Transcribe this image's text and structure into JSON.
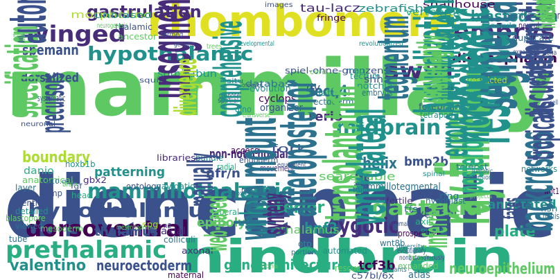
{
  "palette": {
    "purple": "#440154",
    "indigo": "#472c7a",
    "navy": "#3b518b",
    "steel": "#2c718e",
    "teal": "#21918c",
    "sea": "#28ae80",
    "green": "#5ec962",
    "lime": "#addc30",
    "yellow": "#e0e022",
    "gold": "#fde725",
    "slate": "#414487"
  },
  "words": [
    {
      "text": "mammillary",
      "color": "#5ec962"
    },
    {
      "text": "diencephalic",
      "color": "#3b518b"
    },
    {
      "text": "rhombomere",
      "color": "#e0e022"
    },
    {
      "text": "hindbrain",
      "color": "#28ae80"
    },
    {
      "text": "hypothalamus",
      "color": "#3b518b"
    },
    {
      "text": "mammillothalamic",
      "color": "#21918c"
    },
    {
      "text": "dorsoventral",
      "color": "#440154"
    },
    {
      "text": "prethalamic",
      "color": "#28ae80"
    },
    {
      "text": "hypothalamic",
      "color": "#21918c"
    },
    {
      "text": "winged",
      "color": "#472c7a"
    },
    {
      "text": "swirl",
      "color": "#472c7a"
    },
    {
      "text": "embrys",
      "color": "#472c7a"
    },
    {
      "text": "midbrain",
      "color": "#21918c"
    },
    {
      "text": "gastrula",
      "color": "#5ec962"
    },
    {
      "text": "gastrulation",
      "color": "#472c7a"
    },
    {
      "text": "blastoderm",
      "color": "#21918c"
    },
    {
      "text": "diencephalon",
      "color": "#440154"
    },
    {
      "text": "spemann",
      "color": "#3b518b"
    },
    {
      "text": "dorsalized",
      "color": "#3b518b"
    },
    {
      "text": "boundary",
      "color": "#addc30"
    },
    {
      "text": "resource",
      "color": "#21918c"
    },
    {
      "text": "helix",
      "color": "#2c718e"
    },
    {
      "text": "fecq4",
      "color": "#2c718e"
    },
    {
      "text": "anterior",
      "color": "#28ae80"
    },
    {
      "text": "zygotic",
      "color": "#472c7a"
    },
    {
      "text": "hnf3",
      "color": "#21918c"
    },
    {
      "text": "searchable",
      "color": "#5ec962"
    },
    {
      "text": "bmp2b",
      "color": "#3b518b"
    },
    {
      "text": "patterning",
      "color": "#21918c"
    },
    {
      "text": "thalamus",
      "color": "#3b518b"
    },
    {
      "text": "valentino",
      "color": "#21918c"
    },
    {
      "text": "neuroectoderm",
      "color": "#3b518b"
    },
    {
      "text": "tcf3b",
      "color": "#440154"
    },
    {
      "text": "genoarchitecture",
      "color": "#28ae80"
    },
    {
      "text": "neuroepithelium",
      "color": "#5ec962"
    },
    {
      "text": "prethalamus",
      "color": "#5ec962"
    },
    {
      "text": "ventral",
      "color": "#3b518b"
    },
    {
      "text": "annotated",
      "color": "#21918c"
    },
    {
      "text": "plate",
      "color": "#28ae80"
    },
    {
      "text": "ray-finned",
      "color": "#5ec962"
    },
    {
      "text": "epiboly",
      "color": "#5ec962"
    },
    {
      "text": "non-notochordal",
      "color": "#472c7a"
    },
    {
      "text": "mammillotegmental",
      "color": "#2c718e"
    },
    {
      "text": "segmentation",
      "color": "#2c718e"
    },
    {
      "text": "vertebrate",
      "color": "#28ae80"
    },
    {
      "text": "snailhouse",
      "color": "#440154"
    },
    {
      "text": "somites",
      "color": "#2c718e"
    },
    {
      "text": "floor",
      "color": "#3b518b"
    },
    {
      "text": "tau-lacz",
      "color": "#472c7a"
    },
    {
      "text": "zebrafish",
      "color": "#21918c"
    },
    {
      "text": "morpholino",
      "color": "#addc30"
    },
    {
      "text": "unbiased",
      "color": "#21918c"
    },
    {
      "text": "images",
      "color": "#3b518b"
    },
    {
      "text": "fringe",
      "color": "#440154"
    },
    {
      "text": "thalamic",
      "color": "#3b518b"
    },
    {
      "text": "ancestor",
      "color": "#5ec962"
    },
    {
      "text": "blastula",
      "color": "#21918c"
    },
    {
      "text": "neural",
      "color": "#472c7a"
    },
    {
      "text": "spiel-ohne-grenzen",
      "color": "#3b518b"
    },
    {
      "text": "fork",
      "color": "#3b518b"
    },
    {
      "text": "somitabun",
      "color": "#21918c"
    },
    {
      "text": "squint",
      "color": "#3b518b"
    },
    {
      "text": "situ",
      "color": "#2c718e"
    },
    {
      "text": "database",
      "color": "#2c718e"
    },
    {
      "text": "evolution",
      "color": "#21918c"
    },
    {
      "text": "cyclops",
      "color": "#440154"
    },
    {
      "text": "organizer",
      "color": "#3b518b"
    },
    {
      "text": "ectoderm",
      "color": "#2c718e"
    },
    {
      "text": "tectum",
      "color": "#21918c"
    },
    {
      "text": "notchla",
      "color": "#21918c"
    },
    {
      "text": "lateral",
      "color": "#21918c"
    },
    {
      "text": "embryos",
      "color": "#2c718e"
    },
    {
      "text": "tegmentum",
      "color": "#2c718e"
    },
    {
      "text": "forebrain",
      "color": "#3b518b"
    },
    {
      "text": "tetrapod",
      "color": "#21918c"
    },
    {
      "text": "rerio",
      "color": "#472c7a"
    },
    {
      "text": "dv",
      "color": "#3b518b"
    },
    {
      "text": "dino",
      "color": "#21918c"
    },
    {
      "text": "map",
      "color": "#21918c"
    },
    {
      "text": "shh",
      "color": "#3b518b"
    },
    {
      "text": "cord",
      "color": "#5ec962"
    },
    {
      "text": "restricted",
      "color": "#addc30"
    },
    {
      "text": "expense",
      "color": "#3b518b"
    },
    {
      "text": "informatics",
      "color": "#3b518b"
    },
    {
      "text": "accurately",
      "color": "#3b518b"
    },
    {
      "text": "systematic",
      "color": "#3b518b"
    },
    {
      "text": "unsegmented",
      "color": "#472c7a"
    },
    {
      "text": "libraries",
      "color": "#472c7a"
    },
    {
      "text": "bundle",
      "color": "#21918c"
    },
    {
      "text": "access",
      "color": "#440154"
    },
    {
      "text": "endoderm",
      "color": "#3b518b"
    },
    {
      "text": "movement",
      "color": "#472c7a"
    },
    {
      "text": "danio",
      "color": "#28ae80"
    },
    {
      "text": "anatomical",
      "color": "#5ec962"
    },
    {
      "text": "navigation",
      "color": "#21918c"
    },
    {
      "text": "radial",
      "color": "#28ae80"
    },
    {
      "text": "rostral",
      "color": "#3b518b"
    },
    {
      "text": "fertile",
      "color": "#472c7a"
    },
    {
      "text": "spinal",
      "color": "#21918c"
    },
    {
      "text": "teleost",
      "color": "#2c718e"
    },
    {
      "text": "networks",
      "color": "#21918c"
    },
    {
      "text": "rfng",
      "color": "#2c718e"
    },
    {
      "text": "tfs",
      "color": "#2c718e"
    },
    {
      "text": "hypoblast",
      "color": "#2c718e"
    },
    {
      "text": "posterior",
      "color": "#28ae80"
    },
    {
      "text": "axis",
      "color": "#28ae80"
    },
    {
      "text": "medial",
      "color": "#21918c"
    },
    {
      "text": "fates",
      "color": "#3b518b"
    },
    {
      "text": "minis",
      "color": "#2c718e"
    },
    {
      "text": "wnt1",
      "color": "#440154"
    },
    {
      "text": "fish",
      "color": "#2c718e"
    },
    {
      "text": "nfr/n",
      "color": "#3b518b"
    },
    {
      "text": "tuberal",
      "color": "#28ae80"
    },
    {
      "text": "transplantation",
      "color": "#5ec962"
    },
    {
      "text": "yolk",
      "color": "#21918c"
    },
    {
      "text": "anteroposterior",
      "color": "#2c718e"
    },
    {
      "text": "ontology",
      "color": "#3b518b"
    },
    {
      "text": "manually",
      "color": "#3b518b"
    },
    {
      "text": "hoxb1b",
      "color": "#21918c"
    },
    {
      "text": "gbx2",
      "color": "#472c7a"
    },
    {
      "text": "bmp",
      "color": "#3b518b"
    },
    {
      "text": "layer",
      "color": "#2c718e"
    },
    {
      "text": "b10.q",
      "color": "#2c718e"
    },
    {
      "text": "head",
      "color": "#28ae80"
    },
    {
      "text": "identity",
      "color": "#3b518b"
    },
    {
      "text": "detailed",
      "color": "#21918c"
    },
    {
      "text": "blastopore",
      "color": "#5ec962"
    },
    {
      "text": "viewed",
      "color": "#2c718e"
    },
    {
      "text": "mesoderm",
      "color": "#5ec962"
    },
    {
      "text": "tube",
      "color": "#2c718e"
    },
    {
      "text": "axial",
      "color": "#472c7a"
    },
    {
      "text": "spg",
      "color": "#addc30"
    },
    {
      "text": "colliculi",
      "color": "#2c718e"
    },
    {
      "text": "axonal",
      "color": "#472c7a"
    },
    {
      "text": "maternal",
      "color": "#440154"
    },
    {
      "text": "pinhead",
      "color": "#21918c"
    },
    {
      "text": "whole-mount",
      "color": "#2c718e"
    },
    {
      "text": "synteny",
      "color": "#472c7a"
    },
    {
      "text": "otp",
      "color": "#21918c"
    },
    {
      "text": "automated",
      "color": "#21918c"
    },
    {
      "text": "rescue",
      "color": "#5ec962"
    },
    {
      "text": "atlas",
      "color": "#2c718e"
    },
    {
      "text": "c57bl/6x",
      "color": "#3b518b"
    },
    {
      "text": "ventrolateral",
      "color": "#21918c"
    },
    {
      "text": "wnt8b",
      "color": "#2c718e"
    },
    {
      "text": "prospective",
      "color": "#440154"
    },
    {
      "text": "trait",
      "color": "#5ec962"
    },
    {
      "text": "expanded",
      "color": "#5ec962"
    },
    {
      "text": "inferred",
      "color": "#5ec962"
    },
    {
      "text": "duplicate",
      "color": "#2c718e"
    },
    {
      "text": "backcrosses",
      "color": "#2c718e"
    },
    {
      "text": "erroneous",
      "color": "#21918c"
    },
    {
      "text": "morphogenetic",
      "color": "#21918c"
    },
    {
      "text": "hybridization",
      "color": "#21918c"
    },
    {
      "text": "orthologues",
      "color": "#21918c"
    },
    {
      "text": "homologues",
      "color": "#21918c"
    },
    {
      "text": "extension",
      "color": "#2c718e"
    },
    {
      "text": "trunk",
      "color": "#2c718e"
    },
    {
      "text": "mutants",
      "color": "#2c718e"
    },
    {
      "text": "portion",
      "color": "#2c718e"
    },
    {
      "text": "mammalian",
      "color": "#3b518b"
    },
    {
      "text": "diversity",
      "color": "#2c718e"
    },
    {
      "text": "cdna",
      "color": "#5ec962"
    },
    {
      "text": "web-based",
      "color": "#5ec962"
    },
    {
      "text": "neuronal",
      "color": "#3b518b"
    },
    {
      "text": "precursors",
      "color": "#3b518b"
    },
    {
      "text": "specification",
      "color": "#5ec962"
    },
    {
      "text": "autonomously",
      "color": "#3b518b"
    },
    {
      "text": "mib",
      "color": "#5ec962"
    },
    {
      "text": "termed",
      "color": "#3b518b"
    },
    {
      "text": "genome",
      "color": "#3b518b"
    },
    {
      "text": "trees",
      "color": "#5ec962"
    },
    {
      "text": "developmental",
      "color": "#21918c"
    },
    {
      "text": "revolutionized",
      "color": "#21918c"
    },
    {
      "text": "embryonic",
      "color": "#3b518b"
    },
    {
      "text": "delta",
      "color": "#3b518b"
    },
    {
      "text": "propose",
      "color": "#3b518b"
    },
    {
      "text": "spatial",
      "color": "#3b518b"
    },
    {
      "text": "comprehensive",
      "color": "#21918c"
    },
    {
      "text": "equivalent",
      "color": "#3b518b"
    },
    {
      "text": "lumatic",
      "color": "#2c718e"
    },
    {
      "text": "projects",
      "color": "#5ec962"
    },
    {
      "text": "tropicalis",
      "color": "#3b518b"
    },
    {
      "text": "lzr/pbx4",
      "color": "#2c718e"
    },
    {
      "text": "n2",
      "color": "#3b518b"
    },
    {
      "text": "expansion",
      "color": "#3b518b"
    },
    {
      "text": "neurogenesis",
      "color": "#5ec962"
    },
    {
      "text": "fgf",
      "color": "#3b518b"
    },
    {
      "text": "brain",
      "color": "#5ec962"
    },
    {
      "text": "one-eyed",
      "color": "#3b518b"
    },
    {
      "text": "transverse",
      "color": "#5ec962"
    },
    {
      "text": "evolutionary",
      "color": "#3b518b"
    },
    {
      "text": "nonautonomously",
      "color": "#3b518b"
    },
    {
      "text": "divergence",
      "color": "#addc30"
    },
    {
      "text": "redundantly",
      "color": "#5ec962"
    },
    {
      "text": "emanating",
      "color": "#5ec962"
    },
    {
      "text": "mesendoderm",
      "color": "#5ec962"
    },
    {
      "text": "ventralized",
      "color": "#5ec962"
    },
    {
      "text": "hatching",
      "color": "#5ec962"
    },
    {
      "text": "histology",
      "color": "#5ec962"
    },
    {
      "text": "cell",
      "color": "#3b518b"
    }
  ]
}
